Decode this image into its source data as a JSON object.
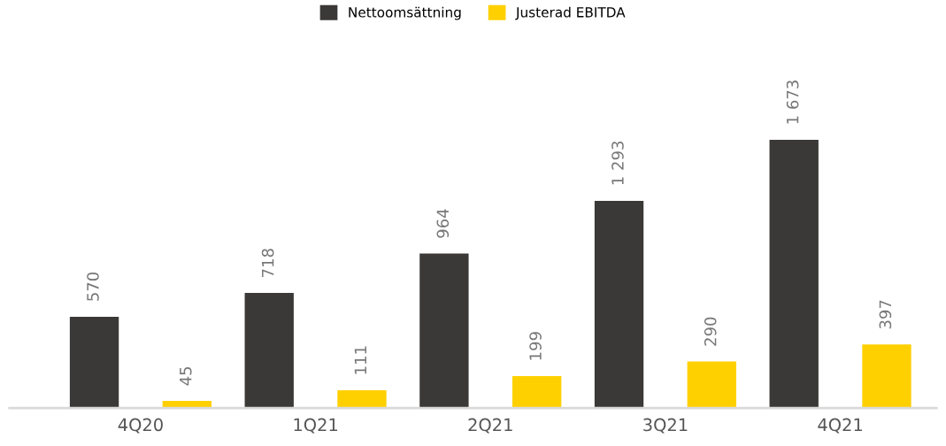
{
  "chart_data": {
    "type": "bar",
    "categories": [
      "4Q20",
      "1Q21",
      "2Q21",
      "3Q21",
      "4Q21"
    ],
    "legend": "top",
    "series": [
      {
        "name": "Nettoomsättning",
        "color": "#3a3937",
        "values": [
          570,
          718,
          964,
          1293,
          1673
        ],
        "value_labels": [
          "570",
          "718",
          "964",
          "1 293",
          "1 673"
        ]
      },
      {
        "name": "Justerad EBITDA",
        "color": "#ffd000",
        "values": [
          45,
          111,
          199,
          290,
          397
        ],
        "value_labels": [
          "45",
          "111",
          "199",
          "290",
          "397"
        ]
      }
    ]
  }
}
